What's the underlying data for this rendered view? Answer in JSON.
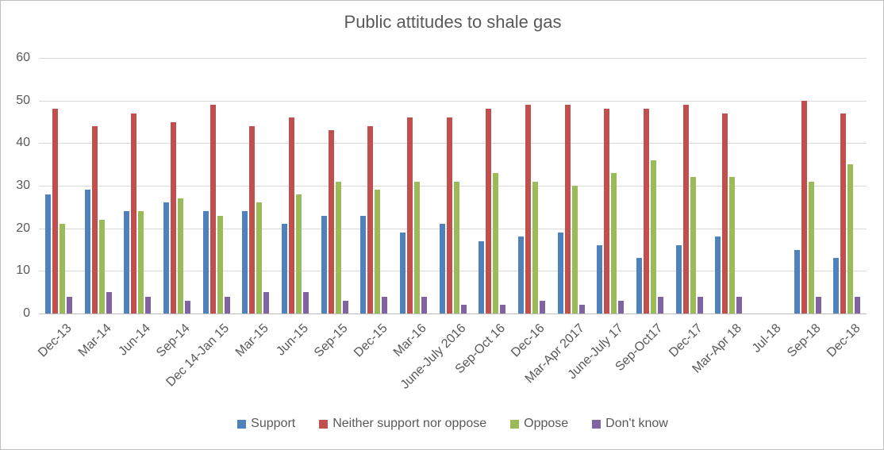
{
  "chart_data": {
    "type": "bar",
    "title": "Public attitudes to shale gas",
    "xlabel": "",
    "ylabel": "",
    "ylim": [
      0,
      60
    ],
    "yticks": [
      0,
      10,
      20,
      30,
      40,
      50,
      60
    ],
    "grid": "horizontal",
    "legend_position": "bottom",
    "categories": [
      "Dec-13",
      "Mar-14",
      "Jun-14",
      "Sep-14",
      "Dec 14-Jan 15",
      "Mar-15",
      "Jun-15",
      "Sep-15",
      "Dec-15",
      "Mar-16",
      "June-July 2016",
      "Sep-Oct 16",
      "Dec-16",
      "Mar-Apr 2017",
      "June-July 17",
      "Sep-Oct17",
      "Dec-17",
      "Mar-Apr 18",
      "Jul-18",
      "Sep-18",
      "Dec-18"
    ],
    "series": [
      {
        "name": "Support",
        "color": "#4F81BD",
        "values": [
          28,
          29,
          24,
          26,
          24,
          24,
          21,
          23,
          23,
          19,
          21,
          17,
          18,
          19,
          16,
          13,
          16,
          18,
          null,
          15,
          13
        ]
      },
      {
        "name": "Neither support nor oppose",
        "color": "#C0504D",
        "values": [
          48,
          44,
          47,
          45,
          49,
          44,
          46,
          43,
          44,
          46,
          46,
          48,
          49,
          49,
          48,
          48,
          49,
          47,
          null,
          50,
          47
        ]
      },
      {
        "name": "Oppose",
        "color": "#9BBB59",
        "values": [
          21,
          22,
          24,
          27,
          23,
          26,
          28,
          31,
          29,
          31,
          31,
          33,
          31,
          30,
          33,
          36,
          32,
          32,
          null,
          31,
          35
        ]
      },
      {
        "name": "Don't know",
        "color": "#8064A2",
        "values": [
          4,
          5,
          4,
          3,
          4,
          5,
          5,
          3,
          4,
          4,
          2,
          2,
          3,
          2,
          3,
          4,
          4,
          4,
          null,
          4,
          4
        ]
      }
    ]
  },
  "colors": {
    "text": "#595959",
    "gridline": "#D9D9D9",
    "axis": "#BDBDBD",
    "background": "#FFFFFF",
    "border": "#BFBFBF"
  }
}
